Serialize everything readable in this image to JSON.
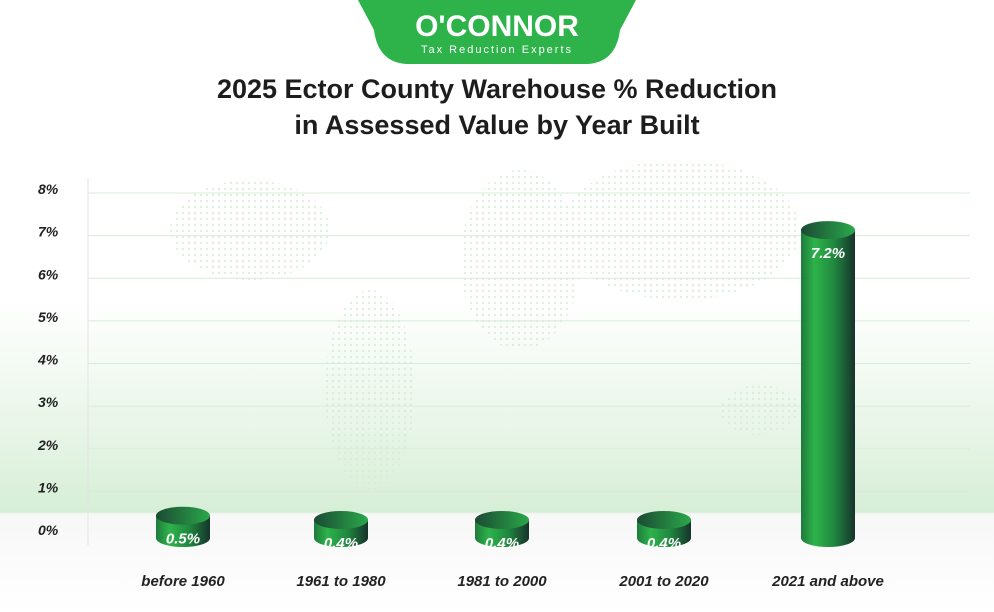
{
  "logo": {
    "brand": "O'CONNOR",
    "tagline": "Tax Reduction Experts",
    "color": "#2db34a"
  },
  "chart_data": {
    "type": "bar",
    "title": "2025 Ector County Warehouse % Reduction in Assessed Value by Year Built",
    "title_lines": [
      "2025 Ector County Warehouse % Reduction",
      "in Assessed Value by Year Built"
    ],
    "categories": [
      "before 1960",
      "1961 to 1980",
      "1981 to 2000",
      "2001 to 2020",
      "2021 and above"
    ],
    "values": [
      0.5,
      0.4,
      0.4,
      0.4,
      7.2
    ],
    "data_labels": [
      "0.5%",
      "0.4%",
      "0.4%",
      "0.4%",
      "7.2%"
    ],
    "yticks": [
      "0%",
      "1%",
      "2%",
      "3%",
      "4%",
      "5%",
      "6%",
      "7%",
      "8%"
    ],
    "ylim": [
      0,
      8
    ],
    "xlabel": "",
    "ylabel": "",
    "grid": true,
    "bar_style": "3d cylinder",
    "bar_color": "#2aa84a"
  }
}
